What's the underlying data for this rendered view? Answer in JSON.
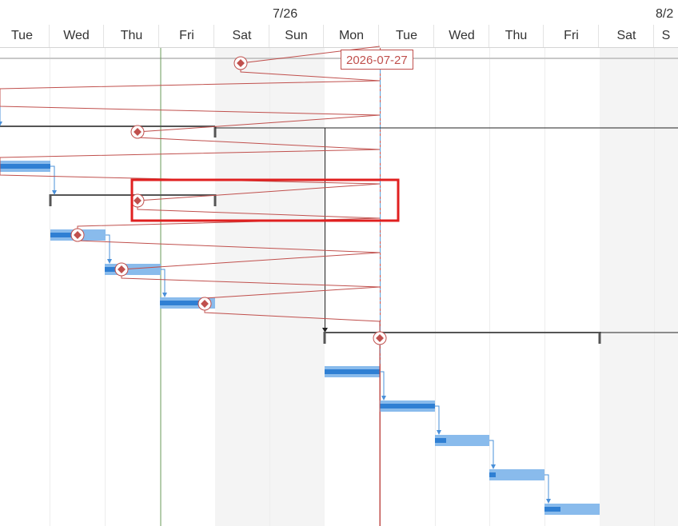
{
  "timescale": {
    "weeks": [
      "7/26",
      "8/2"
    ],
    "days": [
      "Tue",
      "Wed",
      "Thu",
      "Fri",
      "Sat",
      "Sun",
      "Mon",
      "Tue",
      "Wed",
      "Thu",
      "Fri",
      "Sat",
      "S"
    ]
  },
  "status_date": {
    "label": "2026-07-27"
  },
  "colors": {
    "progress_line": "#c0504d",
    "task_bar": "#89bbec",
    "task_progress": "#2f7fd3",
    "summary_bar": "#555555",
    "dependency": "#4a90d9",
    "selection": "#e02020",
    "current_date_line": "#6a9a5a",
    "weekend_shading": "#f4f4f4"
  }
}
